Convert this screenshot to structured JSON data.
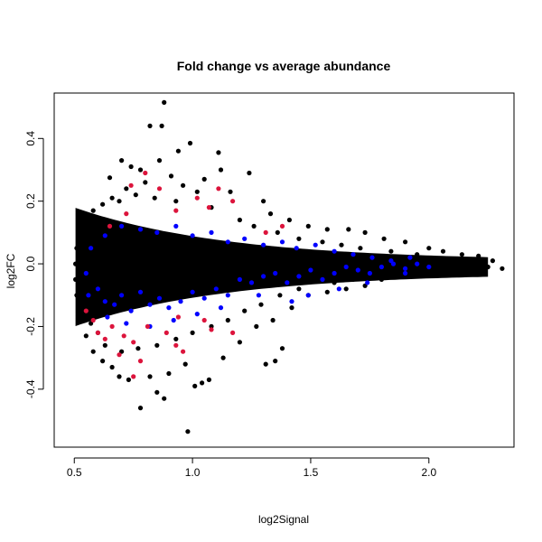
{
  "chart_data": {
    "type": "scatter",
    "title": "Fold change vs average abundance",
    "xlabel": "log2Signal",
    "ylabel": "log2FC",
    "xlim": [
      0.415,
      2.36
    ],
    "ylim": [
      -0.585,
      0.545
    ],
    "xticks": [
      0.5,
      1.0,
      1.5,
      2.0
    ],
    "xtick_labels": [
      "0.5",
      "1.0",
      "1.5",
      "2.0"
    ],
    "yticks": [
      -0.4,
      -0.2,
      0.0,
      0.2,
      0.4
    ],
    "ytick_labels": [
      "-0.4",
      "-0.2",
      "0.0",
      "0.2",
      "0.4"
    ],
    "grid": false,
    "legend": "none",
    "series": [
      {
        "color": "#000000",
        "points": [
          [
            0.88,
            0.515
          ],
          [
            0.82,
            0.44
          ],
          [
            0.87,
            0.44
          ],
          [
            0.99,
            0.385
          ],
          [
            0.94,
            0.36
          ],
          [
            1.11,
            0.355
          ],
          [
            0.86,
            0.33
          ],
          [
            0.7,
            0.33
          ],
          [
            0.74,
            0.31
          ],
          [
            1.24,
            0.29
          ],
          [
            0.65,
            0.275
          ],
          [
            0.78,
            0.3
          ],
          [
            0.91,
            0.28
          ],
          [
            1.05,
            0.27
          ],
          [
            1.12,
            0.3
          ],
          [
            0.66,
            0.21
          ],
          [
            0.72,
            0.24
          ],
          [
            0.8,
            0.26
          ],
          [
            0.96,
            0.25
          ],
          [
            1.02,
            0.23
          ],
          [
            1.16,
            0.23
          ],
          [
            1.3,
            0.2
          ],
          [
            1.33,
            0.16
          ],
          [
            1.41,
            0.14
          ],
          [
            1.49,
            0.12
          ],
          [
            1.57,
            0.11
          ],
          [
            1.66,
            0.11
          ],
          [
            1.73,
            0.1
          ],
          [
            1.81,
            0.08
          ],
          [
            1.9,
            0.07
          ],
          [
            2.0,
            0.05
          ],
          [
            2.06,
            0.04
          ],
          [
            2.14,
            0.03
          ],
          [
            2.21,
            0.025
          ],
          [
            2.27,
            0.01
          ],
          [
            2.31,
            -0.015
          ],
          [
            2.25,
            -0.01
          ],
          [
            2.17,
            -0.01
          ],
          [
            2.08,
            -0.015
          ],
          [
            1.99,
            -0.03
          ],
          [
            1.9,
            -0.04
          ],
          [
            1.8,
            -0.05
          ],
          [
            1.73,
            -0.07
          ],
          [
            1.65,
            -0.08
          ],
          [
            1.57,
            -0.09
          ],
          [
            1.49,
            -0.1
          ],
          [
            1.42,
            -0.14
          ],
          [
            1.34,
            -0.18
          ],
          [
            1.27,
            -0.2
          ],
          [
            1.38,
            -0.27
          ],
          [
            1.35,
            -0.31
          ],
          [
            1.31,
            -0.32
          ],
          [
            1.2,
            -0.25
          ],
          [
            1.13,
            -0.3
          ],
          [
            1.07,
            -0.37
          ],
          [
            1.04,
            -0.38
          ],
          [
            1.01,
            -0.39
          ],
          [
            0.97,
            -0.32
          ],
          [
            0.9,
            -0.35
          ],
          [
            0.82,
            -0.36
          ],
          [
            0.85,
            -0.41
          ],
          [
            0.88,
            -0.43
          ],
          [
            0.78,
            -0.46
          ],
          [
            0.98,
            -0.535
          ],
          [
            0.73,
            -0.37
          ],
          [
            0.69,
            -0.36
          ],
          [
            0.66,
            -0.33
          ],
          [
            0.62,
            -0.31
          ],
          [
            0.58,
            -0.28
          ],
          [
            0.55,
            -0.23
          ],
          [
            0.52,
            -0.16
          ],
          [
            0.51,
            -0.1
          ],
          [
            0.505,
            -0.05
          ],
          [
            0.505,
            0.0
          ],
          [
            0.51,
            0.05
          ],
          [
            0.52,
            0.1
          ],
          [
            0.55,
            0.14
          ],
          [
            0.58,
            0.17
          ],
          [
            0.62,
            0.19
          ],
          [
            0.69,
            0.2
          ],
          [
            0.76,
            0.22
          ],
          [
            0.84,
            0.21
          ],
          [
            0.93,
            0.2
          ],
          [
            1.08,
            0.18
          ],
          [
            1.2,
            0.14
          ],
          [
            1.26,
            0.12
          ],
          [
            1.36,
            0.1
          ],
          [
            1.45,
            0.08
          ],
          [
            1.55,
            0.07
          ],
          [
            1.63,
            0.06
          ],
          [
            1.71,
            0.05
          ],
          [
            1.84,
            0.04
          ],
          [
            1.95,
            0.03
          ],
          [
            1.6,
            -0.06
          ],
          [
            1.68,
            -0.05
          ],
          [
            1.76,
            -0.03
          ],
          [
            1.86,
            -0.02
          ],
          [
            1.95,
            -0.02
          ],
          [
            1.45,
            -0.08
          ],
          [
            1.37,
            -0.1
          ],
          [
            1.29,
            -0.13
          ],
          [
            1.22,
            -0.15
          ],
          [
            1.15,
            -0.18
          ],
          [
            1.08,
            -0.2
          ],
          [
            1.0,
            -0.22
          ],
          [
            0.93,
            -0.24
          ],
          [
            0.85,
            -0.26
          ],
          [
            0.77,
            -0.27
          ],
          [
            0.7,
            -0.28
          ],
          [
            0.63,
            -0.26
          ],
          [
            0.6,
            -0.22
          ],
          [
            0.57,
            -0.19
          ]
        ]
      },
      {
        "color": "#0000ff",
        "points": [
          [
            0.6,
            -0.08
          ],
          [
            0.63,
            -0.12
          ],
          [
            0.67,
            -0.13
          ],
          [
            0.7,
            -0.1
          ],
          [
            0.74,
            -0.15
          ],
          [
            0.78,
            -0.09
          ],
          [
            0.82,
            -0.13
          ],
          [
            0.86,
            -0.11
          ],
          [
            0.9,
            -0.14
          ],
          [
            0.95,
            -0.12
          ],
          [
            1.0,
            -0.09
          ],
          [
            1.05,
            -0.11
          ],
          [
            1.1,
            -0.08
          ],
          [
            1.15,
            -0.1
          ],
          [
            1.2,
            -0.05
          ],
          [
            1.25,
            -0.06
          ],
          [
            1.3,
            -0.04
          ],
          [
            1.35,
            -0.03
          ],
          [
            1.4,
            -0.06
          ],
          [
            1.45,
            -0.04
          ],
          [
            1.5,
            -0.02
          ],
          [
            1.55,
            -0.05
          ],
          [
            1.6,
            -0.03
          ],
          [
            1.65,
            -0.01
          ],
          [
            1.7,
            -0.02
          ],
          [
            1.75,
            -0.03
          ],
          [
            1.8,
            -0.01
          ],
          [
            1.85,
            0.0
          ],
          [
            1.9,
            -0.015
          ],
          [
            1.95,
            0.0
          ],
          [
            2.0,
            -0.01
          ],
          [
            1.3,
            0.06
          ],
          [
            1.38,
            0.07
          ],
          [
            1.44,
            0.05
          ],
          [
            1.52,
            0.06
          ],
          [
            1.6,
            0.04
          ],
          [
            1.68,
            0.03
          ],
          [
            1.76,
            0.02
          ],
          [
            1.84,
            0.01
          ],
          [
            1.92,
            0.02
          ],
          [
            1.22,
            0.08
          ],
          [
            1.15,
            0.07
          ],
          [
            1.08,
            0.1
          ],
          [
            1.0,
            0.09
          ],
          [
            0.93,
            0.12
          ],
          [
            0.85,
            0.1
          ],
          [
            0.78,
            0.11
          ],
          [
            0.7,
            0.12
          ],
          [
            0.63,
            0.09
          ],
          [
            0.57,
            0.05
          ],
          [
            0.55,
            -0.03
          ],
          [
            0.56,
            -0.1
          ],
          [
            0.64,
            -0.17
          ],
          [
            0.72,
            -0.19
          ],
          [
            0.82,
            -0.2
          ],
          [
            0.92,
            -0.18
          ],
          [
            1.02,
            -0.16
          ],
          [
            1.12,
            -0.14
          ],
          [
            1.28,
            -0.1
          ],
          [
            1.42,
            -0.12
          ],
          [
            1.49,
            -0.1
          ],
          [
            1.62,
            -0.08
          ],
          [
            1.74,
            -0.06
          ],
          [
            1.9,
            -0.03
          ]
        ]
      },
      {
        "color": "#dc143c",
        "points": [
          [
            0.74,
            0.25
          ],
          [
            0.8,
            0.29
          ],
          [
            0.86,
            0.24
          ],
          [
            1.02,
            0.21
          ],
          [
            1.11,
            0.24
          ],
          [
            1.17,
            0.2
          ],
          [
            1.07,
            0.18
          ],
          [
            0.93,
            0.17
          ],
          [
            0.65,
            0.12
          ],
          [
            1.38,
            0.12
          ],
          [
            1.31,
            0.1
          ],
          [
            0.72,
            0.16
          ],
          [
            0.58,
            -0.18
          ],
          [
            0.6,
            -0.22
          ],
          [
            0.63,
            -0.24
          ],
          [
            0.66,
            -0.2
          ],
          [
            0.71,
            -0.23
          ],
          [
            0.75,
            -0.25
          ],
          [
            0.81,
            -0.2
          ],
          [
            0.89,
            -0.22
          ],
          [
            0.93,
            -0.26
          ],
          [
            0.96,
            -0.28
          ],
          [
            1.05,
            -0.18
          ],
          [
            1.08,
            -0.21
          ],
          [
            1.17,
            -0.22
          ],
          [
            0.78,
            -0.31
          ],
          [
            0.75,
            -0.36
          ],
          [
            0.69,
            -0.29
          ],
          [
            0.55,
            -0.15
          ],
          [
            0.94,
            -0.17
          ]
        ]
      }
    ]
  }
}
